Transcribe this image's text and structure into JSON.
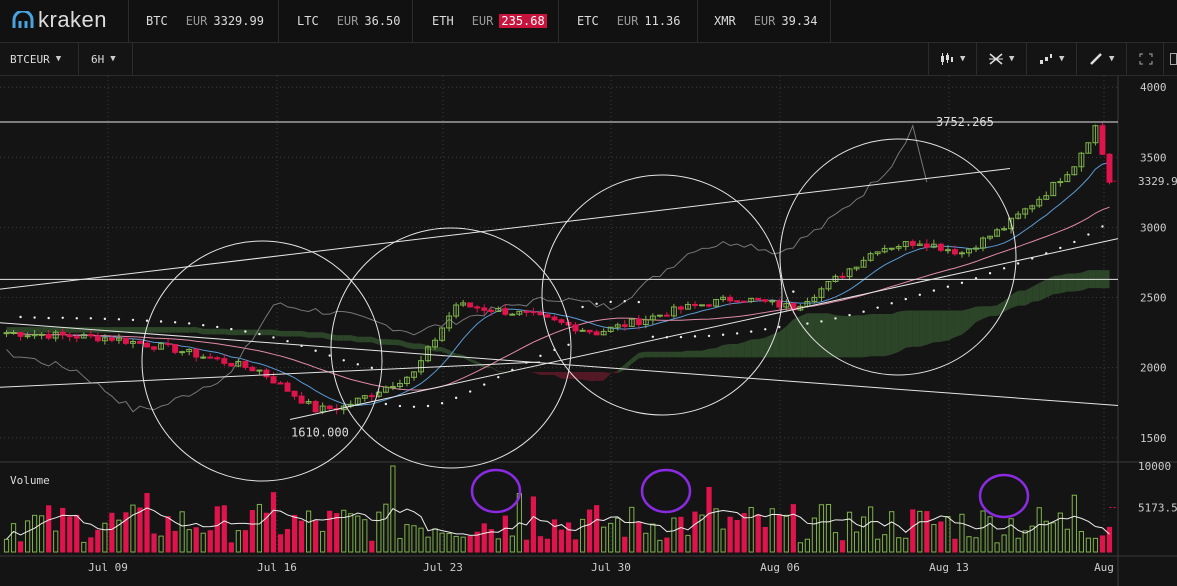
{
  "header": {
    "logo_text": "kraken",
    "tickers": [
      {
        "symbol": "BTC",
        "currency": "EUR",
        "price": "3329.99",
        "direction": "up"
      },
      {
        "symbol": "LTC",
        "currency": "EUR",
        "price": "36.50",
        "direction": "up"
      },
      {
        "symbol": "ETH",
        "currency": "EUR",
        "price": "235.68",
        "direction": "down"
      },
      {
        "symbol": "ETC",
        "currency": "EUR",
        "price": "11.36",
        "direction": "up"
      },
      {
        "symbol": "XMR",
        "currency": "EUR",
        "price": "39.34",
        "direction": "up"
      }
    ]
  },
  "toolbar": {
    "pair_label": "BTCEUR",
    "interval_label": "6H",
    "tool_icons": [
      "candles-icon",
      "crosshair-icon",
      "indicators-icon",
      "pencil-icon",
      "fullscreen-icon"
    ]
  },
  "colors": {
    "up": "#7fb24a",
    "down": "#e0144c",
    "cloud_up": "#2f4a2a",
    "cloud_down": "#5a1a26",
    "annotation": "#8a2be2",
    "background": "#141414"
  },
  "chart_data": {
    "type": "candlestick",
    "price_axis": {
      "ticks": [
        4000,
        3500,
        3000,
        2500,
        2000,
        1500
      ],
      "ylim": [
        1370,
        4080
      ],
      "last_price_label": "3329.9"
    },
    "volume_axis": {
      "label": "Volume",
      "ticks": [
        10000,
        5173.5
      ],
      "tick_labels": [
        "10000",
        "5173.5"
      ],
      "ylim": [
        0,
        10000
      ]
    },
    "x_labels": [
      "Jul 09",
      "Jul 16",
      "Jul 23",
      "Jul 30",
      "Aug 06",
      "Aug 13",
      "Aug"
    ],
    "annotations": {
      "high_label": "3752.265",
      "low_label": "1610.000"
    },
    "candles": {
      "count": 158,
      "period_hours": 6,
      "key_levels": [
        {
          "index": 0,
          "close": 2250
        },
        {
          "index": 15,
          "close": 2210
        },
        {
          "index": 24,
          "close": 2130
        },
        {
          "index": 36,
          "close": 1980
        },
        {
          "index": 44,
          "close": 1700
        },
        {
          "index": 48,
          "close": 1720
        },
        {
          "index": 58,
          "close": 1960
        },
        {
          "index": 64,
          "close": 2450
        },
        {
          "index": 74,
          "close": 2380
        },
        {
          "index": 84,
          "close": 2250
        },
        {
          "index": 96,
          "close": 2420
        },
        {
          "index": 104,
          "close": 2500
        },
        {
          "index": 112,
          "close": 2430
        },
        {
          "index": 116,
          "close": 2560
        },
        {
          "index": 124,
          "close": 2850
        },
        {
          "index": 130,
          "close": 2900
        },
        {
          "index": 136,
          "close": 2820
        },
        {
          "index": 142,
          "close": 3000
        },
        {
          "index": 148,
          "close": 3250
        },
        {
          "index": 152,
          "close": 3450
        },
        {
          "index": 155,
          "close": 3720
        },
        {
          "index": 157,
          "close": 3330
        }
      ]
    },
    "volume": {
      "average_level": 3500,
      "spikes": [
        {
          "index": 20,
          "value": 6800
        },
        {
          "index": 38,
          "value": 6900
        },
        {
          "index": 55,
          "value": 10000
        },
        {
          "index": 73,
          "value": 6800
        },
        {
          "index": 75,
          "value": 6400
        },
        {
          "index": 100,
          "value": 7500
        },
        {
          "index": 152,
          "value": 6600
        }
      ]
    },
    "horizontal_lines": [
      3752.265,
      2630
    ],
    "grid": true
  }
}
